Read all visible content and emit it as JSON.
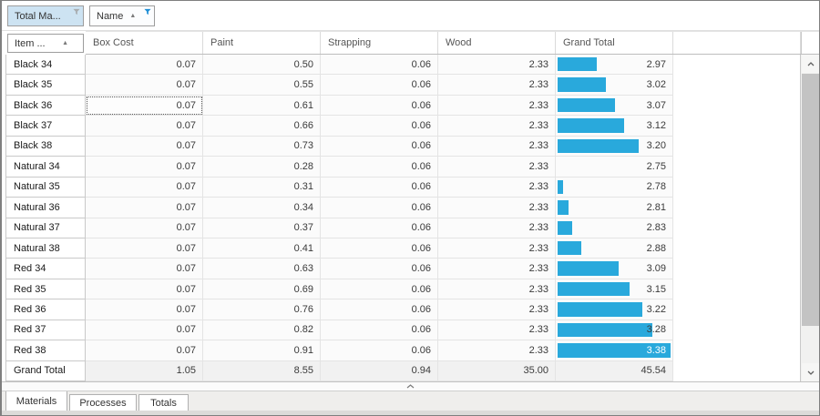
{
  "field_buttons": {
    "data_area": {
      "label": "Total Ma...",
      "filter_icon": "funnel"
    },
    "column_area": {
      "label": "Name",
      "sort": "asc",
      "filter_icon": "funnel-active"
    }
  },
  "row_area_field": {
    "label": "Item ...",
    "sort": "asc"
  },
  "columns": {
    "headers": [
      "Box Cost",
      "Paint",
      "Strapping",
      "Wood",
      "Grand Total"
    ]
  },
  "grid": {
    "rows": [
      {
        "label": "Black 34",
        "values": [
          "0.07",
          "0.50",
          "0.06",
          "2.33"
        ],
        "total": "2.97",
        "total_num": 2.97
      },
      {
        "label": "Black 35",
        "values": [
          "0.07",
          "0.55",
          "0.06",
          "2.33"
        ],
        "total": "3.02",
        "total_num": 3.02
      },
      {
        "label": "Black 36",
        "values": [
          "0.07",
          "0.61",
          "0.06",
          "2.33"
        ],
        "total": "3.07",
        "total_num": 3.07
      },
      {
        "label": "Black 37",
        "values": [
          "0.07",
          "0.66",
          "0.06",
          "2.33"
        ],
        "total": "3.12",
        "total_num": 3.12
      },
      {
        "label": "Black 38",
        "values": [
          "0.07",
          "0.73",
          "0.06",
          "2.33"
        ],
        "total": "3.20",
        "total_num": 3.2
      },
      {
        "label": "Natural 34",
        "values": [
          "0.07",
          "0.28",
          "0.06",
          "2.33"
        ],
        "total": "2.75",
        "total_num": 2.75
      },
      {
        "label": "Natural 35",
        "values": [
          "0.07",
          "0.31",
          "0.06",
          "2.33"
        ],
        "total": "2.78",
        "total_num": 2.78
      },
      {
        "label": "Natural 36",
        "values": [
          "0.07",
          "0.34",
          "0.06",
          "2.33"
        ],
        "total": "2.81",
        "total_num": 2.81
      },
      {
        "label": "Natural 37",
        "values": [
          "0.07",
          "0.37",
          "0.06",
          "2.33"
        ],
        "total": "2.83",
        "total_num": 2.83
      },
      {
        "label": "Natural 38",
        "values": [
          "0.07",
          "0.41",
          "0.06",
          "2.33"
        ],
        "total": "2.88",
        "total_num": 2.88
      },
      {
        "label": "Red 34",
        "values": [
          "0.07",
          "0.63",
          "0.06",
          "2.33"
        ],
        "total": "3.09",
        "total_num": 3.09
      },
      {
        "label": "Red 35",
        "values": [
          "0.07",
          "0.69",
          "0.06",
          "2.33"
        ],
        "total": "3.15",
        "total_num": 3.15
      },
      {
        "label": "Red 36",
        "values": [
          "0.07",
          "0.76",
          "0.06",
          "2.33"
        ],
        "total": "3.22",
        "total_num": 3.22
      },
      {
        "label": "Red 37",
        "values": [
          "0.07",
          "0.82",
          "0.06",
          "2.33"
        ],
        "total": "3.28",
        "total_num": 3.28
      },
      {
        "label": "Red 38",
        "values": [
          "0.07",
          "0.91",
          "0.06",
          "2.33"
        ],
        "total": "3.38",
        "total_num": 3.38,
        "total_text_white": true
      },
      {
        "label": "Grand Total",
        "values": [
          "1.05",
          "8.55",
          "0.94",
          "35.00"
        ],
        "total": "45.54",
        "total_num": null,
        "is_total": true
      }
    ],
    "selected_cell": {
      "row": 2,
      "col": 0
    },
    "bars": {
      "min": 2.75,
      "max": 3.38,
      "color": "#29a9dc"
    }
  },
  "tabs": [
    {
      "label": "Materials",
      "active": true
    },
    {
      "label": "Processes",
      "active": false
    },
    {
      "label": "Totals",
      "active": false
    }
  ],
  "colors": {
    "bar": "#29a9dc",
    "selected_field_bg": "#cde3f2",
    "filter_active_blue": "#1f8fd6",
    "filter_inactive_gray": "#a9adb0"
  }
}
